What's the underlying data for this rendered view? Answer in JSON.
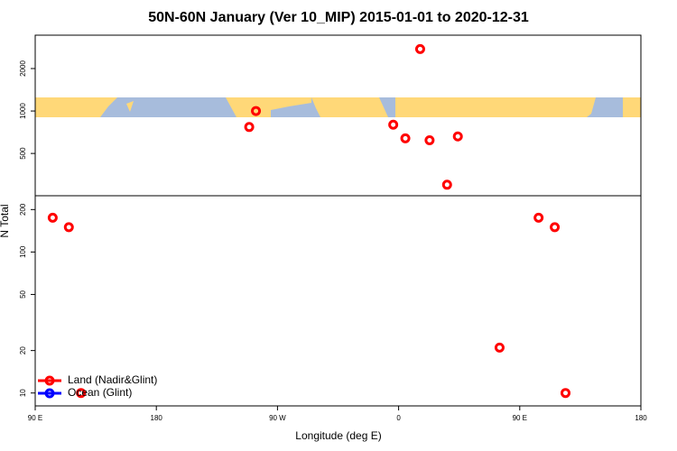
{
  "chart_data": {
    "type": "scatter",
    "title": "50N-60N January (Ver 10_MIP)   2015-01-01 to 2020-12-31",
    "x_label": "Longitude (deg E)",
    "y_label": "N Total",
    "xlim": [
      90,
      540
    ],
    "xticks": [
      {
        "value": 90,
        "label": "90 E"
      },
      180,
      {
        "value": 270,
        "label": "90 W"
      },
      {
        "value": 360,
        "label": "0"
      },
      {
        "value": 450,
        "label": "90 E"
      },
      {
        "value": 540,
        "label": "180"
      }
    ],
    "ylim": [
      8.1,
      3450
    ],
    "yticks": [
      10,
      20,
      50,
      100,
      200,
      500,
      1000,
      2000
    ],
    "log_y": true,
    "legend": "bottom-left",
    "series": [
      {
        "name": "Land (Nadir&Glint)",
        "color": "#ff0000",
        "x": [
          103,
          115,
          124,
          249,
          254,
          356,
          365,
          376,
          383,
          396,
          404,
          435,
          464,
          476,
          484
        ],
        "values": [
          175,
          150,
          10,
          770,
          1000,
          800,
          640,
          2750,
          620,
          300,
          660,
          21,
          175,
          150,
          10
        ]
      },
      {
        "name": "Ocean (Glint)",
        "color": "#0000ff",
        "x": [],
        "values": []
      }
    ]
  }
}
